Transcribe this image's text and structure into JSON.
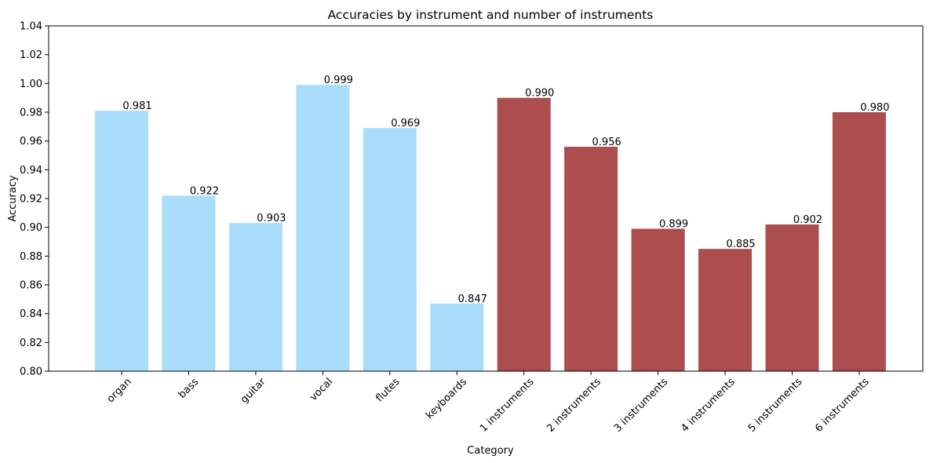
{
  "chart_data": {
    "type": "bar",
    "title": "Accuracies by instrument and number of instruments",
    "xlabel": "Category",
    "ylabel": "Accuracy",
    "ylim": [
      0.8,
      1.04
    ],
    "yticks": [
      "0.80",
      "0.82",
      "0.84",
      "0.86",
      "0.88",
      "0.90",
      "0.92",
      "0.94",
      "0.96",
      "0.98",
      "1.00",
      "1.02",
      "1.04"
    ],
    "grid": false,
    "legend": "none",
    "categories": [
      "organ",
      "bass",
      "guitar",
      "vocal",
      "flutes",
      "keyboards",
      "1 instruments",
      "2 instruments",
      "3 instruments",
      "4 instruments",
      "5 instruments",
      "6 instruments"
    ],
    "values": [
      0.981,
      0.922,
      0.903,
      0.999,
      0.969,
      0.847,
      0.99,
      0.956,
      0.899,
      0.885,
      0.902,
      0.98
    ],
    "value_labels": [
      "0.981",
      "0.922",
      "0.903",
      "0.999",
      "0.969",
      "0.847",
      "0.990",
      "0.956",
      "0.899",
      "0.885",
      "0.902",
      "0.980"
    ],
    "groups": [
      "instrument",
      "instrument",
      "instrument",
      "instrument",
      "instrument",
      "instrument",
      "count",
      "count",
      "count",
      "count",
      "count",
      "count"
    ],
    "colors": {
      "instrument": "#aadcfc",
      "count": "#ab4e4d"
    }
  }
}
